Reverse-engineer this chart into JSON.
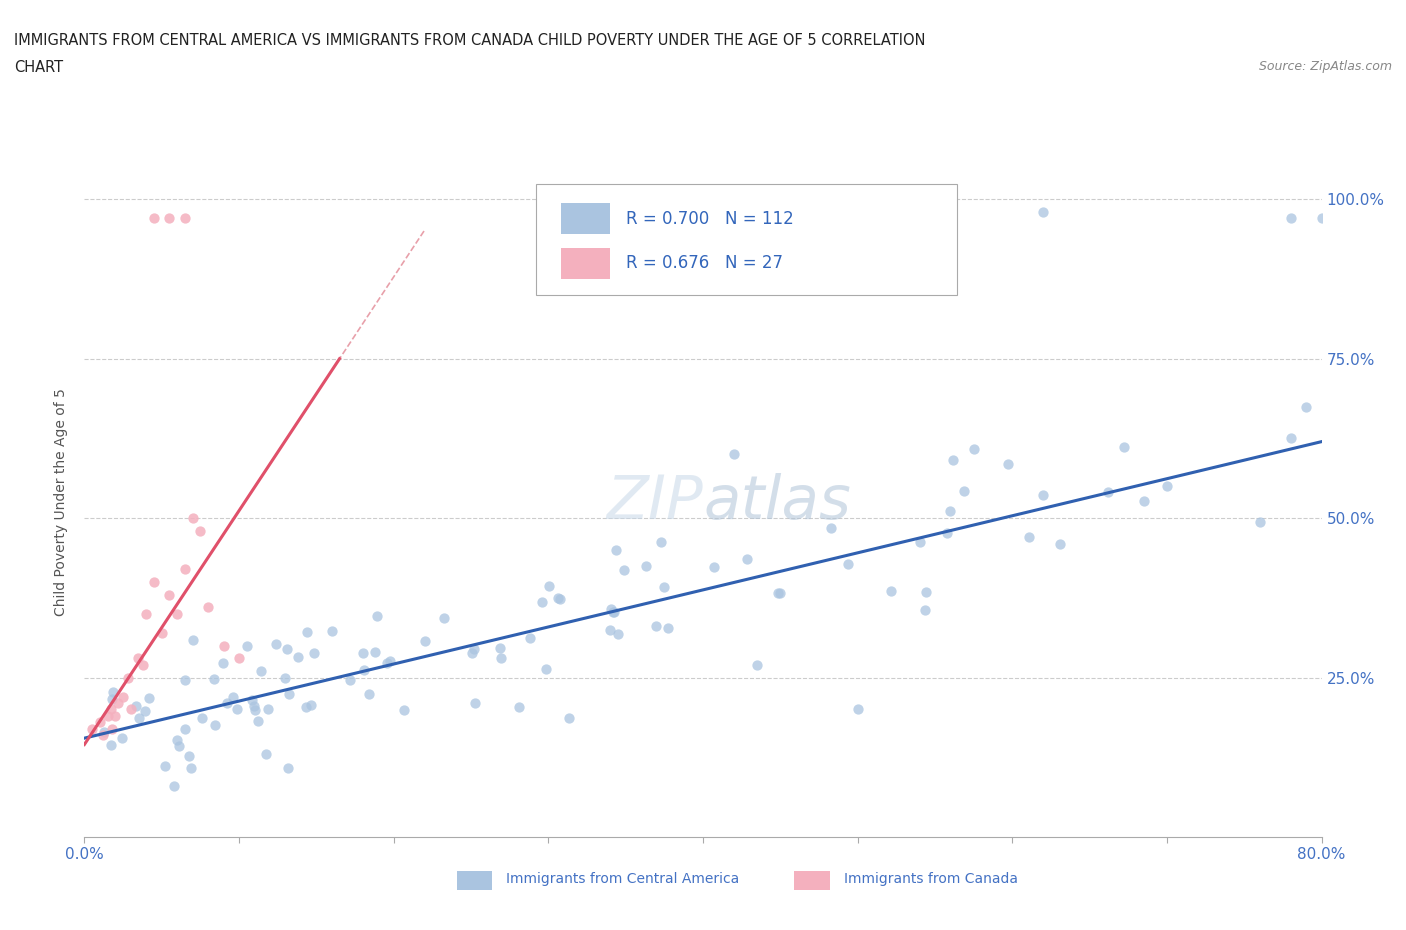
{
  "title_line1": "IMMIGRANTS FROM CENTRAL AMERICA VS IMMIGRANTS FROM CANADA CHILD POVERTY UNDER THE AGE OF 5 CORRELATION",
  "title_line2": "CHART",
  "source_text": "Source: ZipAtlas.com",
  "ylabel": "Child Poverty Under the Age of 5",
  "x_min": 0.0,
  "x_max": 0.8,
  "y_min": 0.0,
  "y_max": 1.05,
  "blue_color": "#aac4e0",
  "pink_color": "#f4b0be",
  "blue_line_color": "#3060b0",
  "pink_line_color": "#e0506a",
  "pink_dash_color": "#e8a0aa",
  "watermark_color": "#d0dce8",
  "legend_R_blue": "0.700",
  "legend_N_blue": "112",
  "legend_R_pink": "0.676",
  "legend_N_pink": "27",
  "blue_trend_x0": 0.0,
  "blue_trend_y0": 0.155,
  "blue_trend_x1": 0.8,
  "blue_trend_y1": 0.62,
  "pink_trend_x0": 0.0,
  "pink_trend_y0": 0.145,
  "pink_trend_x1": 0.165,
  "pink_trend_y1": 0.75
}
